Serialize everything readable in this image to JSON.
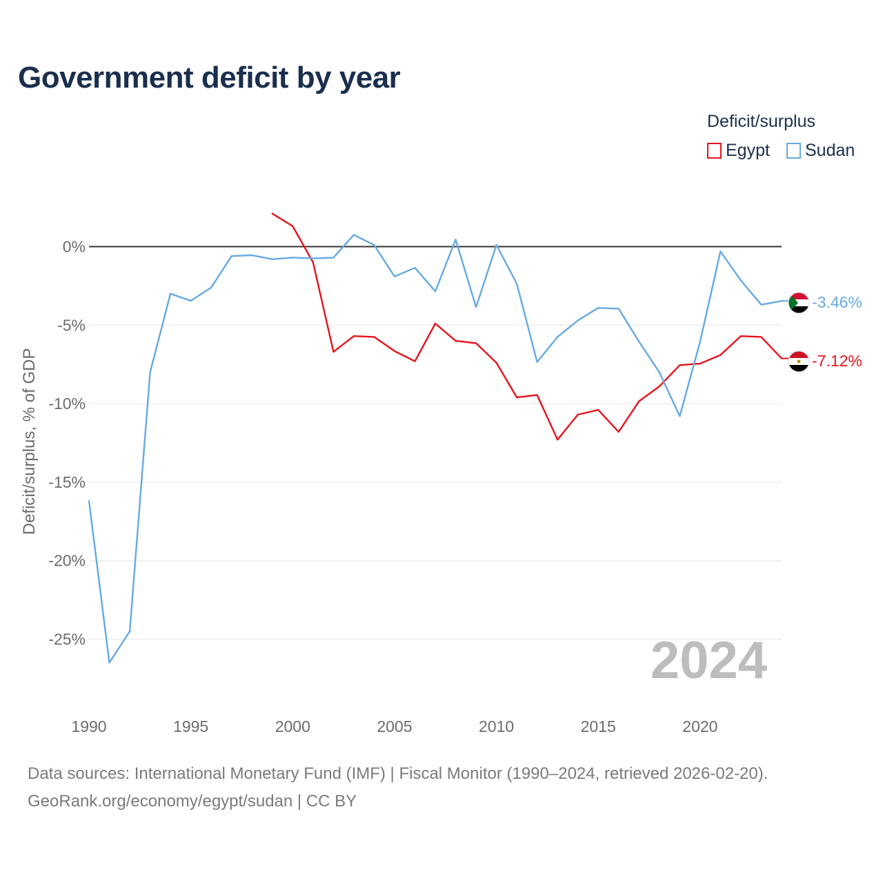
{
  "title": "Government deficit by year",
  "legend": {
    "title": "Deficit/surplus",
    "items": [
      {
        "name": "Egypt",
        "color": "#e8121a"
      },
      {
        "name": "Sudan",
        "color": "#64a9e3"
      }
    ]
  },
  "footer": {
    "line1": "Data sources: International Monetary Fund (IMF) | Fiscal Monitor (1990–2024, retrieved 2026-02-20).",
    "line2": "GeoRank.org/economy/egypt/sudan | CC BY"
  },
  "chart_data": {
    "type": "line",
    "title": "Government deficit by year",
    "xlabel": "",
    "ylabel": "Deficit/surplus, % of GDP",
    "xlim": [
      1990,
      2024
    ],
    "ylim": [
      -27,
      2
    ],
    "x_ticks": [
      1990,
      1995,
      2000,
      2005,
      2010,
      2015,
      2020
    ],
    "y_ticks": [
      0,
      -5,
      -10,
      -15,
      -20,
      -25
    ],
    "y_tick_labels": [
      "0%",
      "-5%",
      "-10%",
      "-15%",
      "-20%",
      "-25%"
    ],
    "watermark_year": "2024",
    "series": [
      {
        "name": "Egypt",
        "color": "#e8121a",
        "end_label": "-7.12%",
        "points": [
          [
            1999,
            2.1
          ],
          [
            2000,
            1.3
          ],
          [
            2001,
            -1.0
          ],
          [
            2002,
            -6.7
          ],
          [
            2003,
            -5.7
          ],
          [
            2004,
            -5.75
          ],
          [
            2005,
            -6.65
          ],
          [
            2006,
            -7.3
          ],
          [
            2007,
            -4.9
          ],
          [
            2008,
            -6.0
          ],
          [
            2009,
            -6.15
          ],
          [
            2010,
            -7.4
          ],
          [
            2011,
            -9.6
          ],
          [
            2012,
            -9.45
          ],
          [
            2013,
            -12.3
          ],
          [
            2014,
            -10.7
          ],
          [
            2015,
            -10.4
          ],
          [
            2016,
            -11.8
          ],
          [
            2017,
            -9.85
          ],
          [
            2018,
            -8.9
          ],
          [
            2019,
            -7.55
          ],
          [
            2020,
            -7.45
          ],
          [
            2021,
            -6.9
          ],
          [
            2022,
            -5.7
          ],
          [
            2023,
            -5.75
          ],
          [
            2024,
            -7.12
          ]
        ]
      },
      {
        "name": "Sudan",
        "color": "#64a9e3",
        "end_label": "-3.46%",
        "points": [
          [
            1990,
            -16.2
          ],
          [
            1991,
            -26.5
          ],
          [
            1992,
            -24.5
          ],
          [
            1993,
            -8.0
          ],
          [
            1994,
            -3.0
          ],
          [
            1995,
            -3.45
          ],
          [
            1996,
            -2.6
          ],
          [
            1997,
            -0.6
          ],
          [
            1998,
            -0.55
          ],
          [
            1999,
            -0.8
          ],
          [
            2000,
            -0.7
          ],
          [
            2001,
            -0.75
          ],
          [
            2002,
            -0.7
          ],
          [
            2003,
            0.75
          ],
          [
            2004,
            0.1
          ],
          [
            2005,
            -1.9
          ],
          [
            2006,
            -1.35
          ],
          [
            2007,
            -2.85
          ],
          [
            2008,
            0.45
          ],
          [
            2009,
            -3.85
          ],
          [
            2010,
            0.1
          ],
          [
            2011,
            -2.35
          ],
          [
            2012,
            -7.35
          ],
          [
            2013,
            -5.75
          ],
          [
            2014,
            -4.7
          ],
          [
            2015,
            -3.9
          ],
          [
            2016,
            -3.95
          ],
          [
            2017,
            -6.05
          ],
          [
            2018,
            -8.0
          ],
          [
            2019,
            -10.8
          ],
          [
            2020,
            -6.05
          ],
          [
            2021,
            -0.3
          ],
          [
            2022,
            -2.15
          ],
          [
            2023,
            -3.7
          ],
          [
            2024,
            -3.46
          ]
        ]
      }
    ]
  }
}
